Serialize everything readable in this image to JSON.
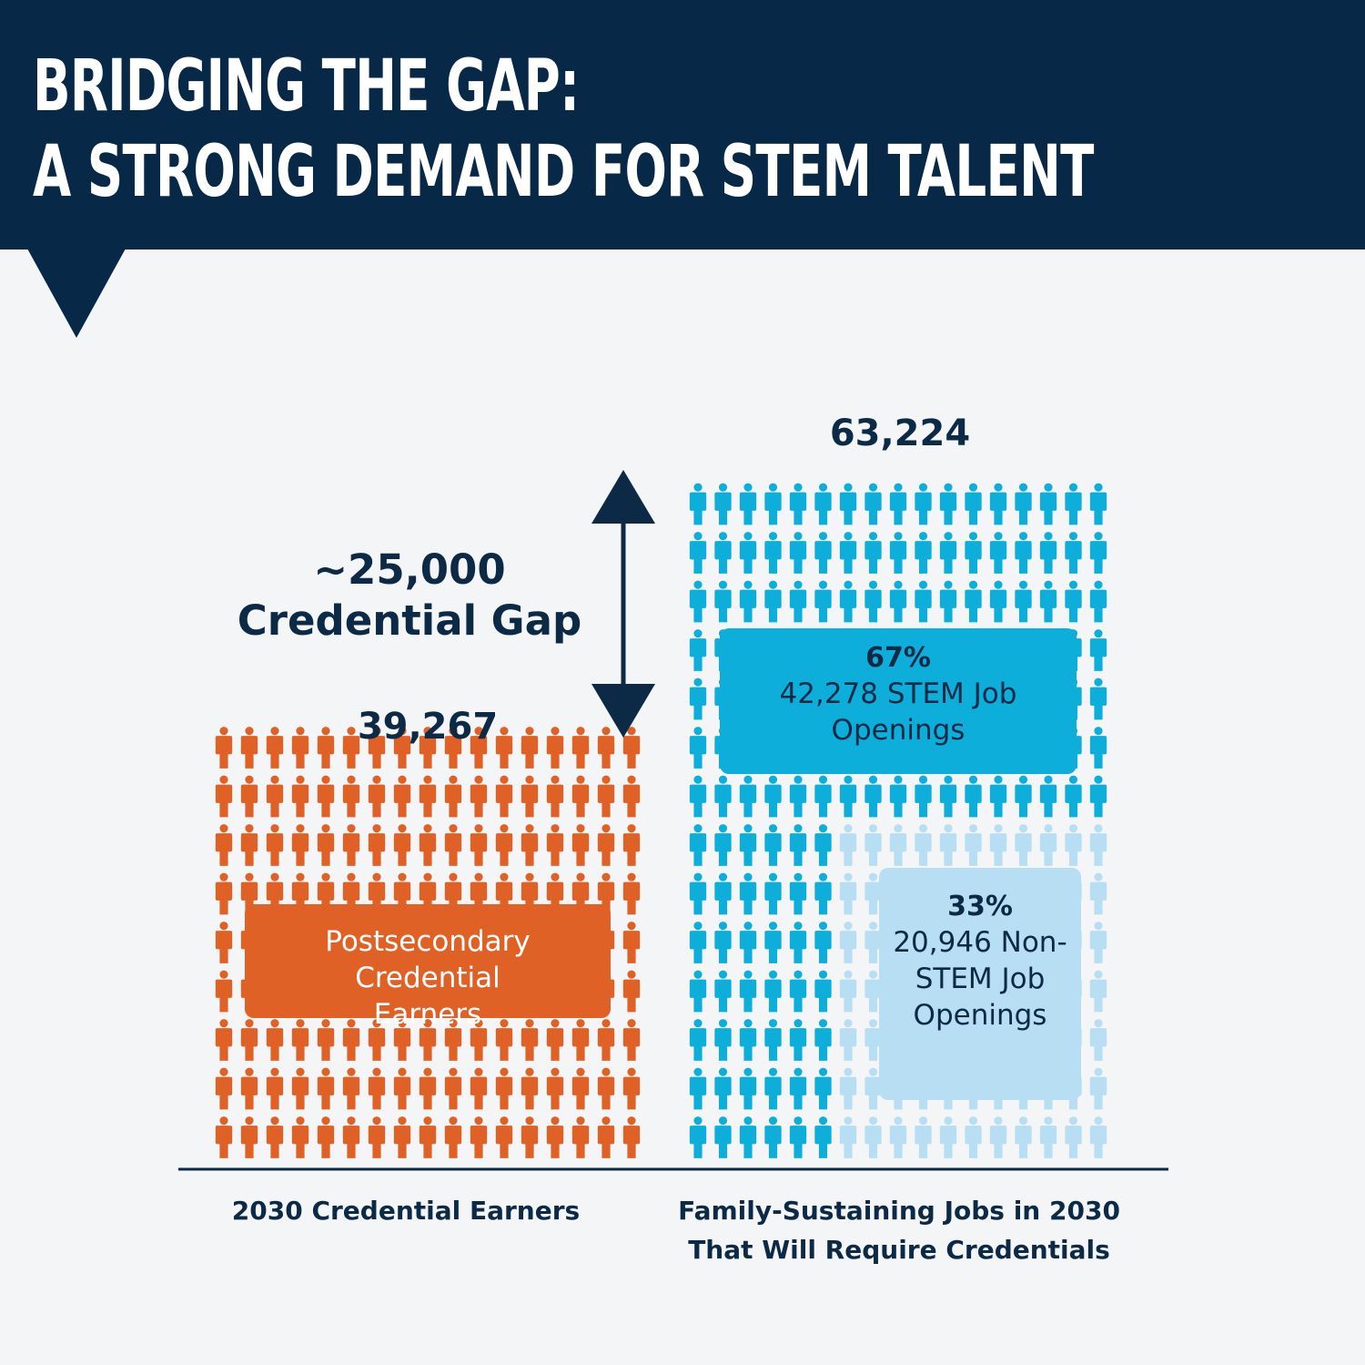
{
  "header": {
    "title_line1": "BRIDGING THE GAP:",
    "title_line2": "A STRONG DEMAND FOR STEM TALENT"
  },
  "chart_data": {
    "type": "bar",
    "categories": [
      "2030 Credential Earners",
      "Family-Sustaining Jobs in 2030 That Will Require Credentials"
    ],
    "totals": [
      39267,
      63224
    ],
    "totals_labels": [
      "39,267",
      "63,224"
    ],
    "credential_earners": {
      "value": 39267,
      "label": "Postsecondary Credential Earners",
      "color": "#e06126"
    },
    "jobs": {
      "total": 63224,
      "segments": [
        {
          "pct_label": "67%",
          "value": 42278,
          "description": "42,278 STEM Job Openings",
          "color": "#0eaedb"
        },
        {
          "pct_label": "33%",
          "value": 20946,
          "description": "20,946 Non-STEM Job Openings",
          "color": "#b8def3"
        }
      ]
    },
    "gap": {
      "value": 25000,
      "amount_label": "~25,000",
      "description": "Credential Gap",
      "color": "#0c2a45"
    }
  },
  "axis": {
    "left_label": "2030 Credential Earners",
    "right_label": "Family-Sustaining Jobs in 2030 That Will Require Credentials"
  }
}
